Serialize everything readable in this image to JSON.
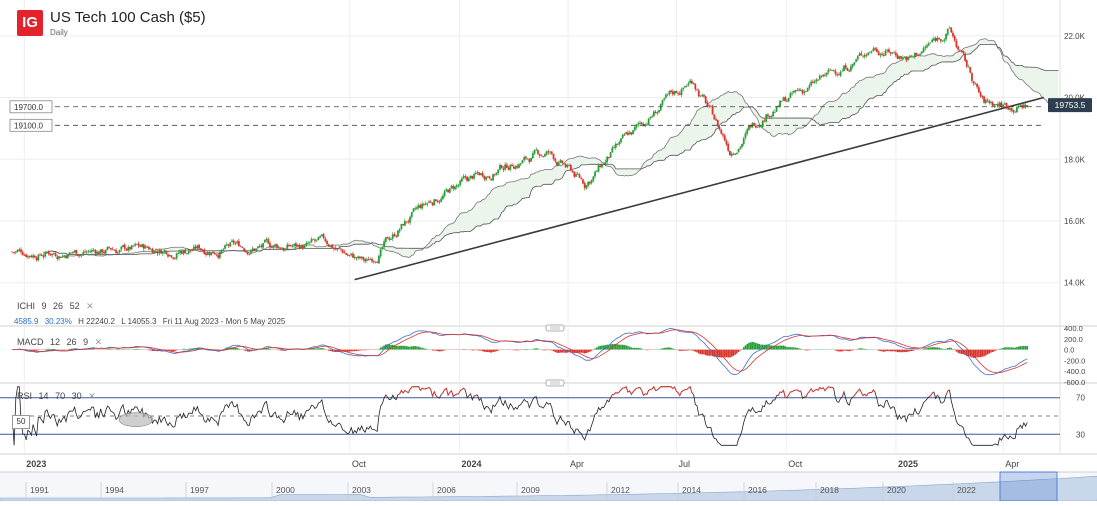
{
  "header": {
    "logo_text": "IG",
    "title": "US Tech 100 Cash ($5)",
    "subtitle": "Daily"
  },
  "colors": {
    "up": "#2a9d3a",
    "down": "#d9342b",
    "logo_bg": "#e3222b",
    "macd_line": "#3b6fd1",
    "signal_line": "#d9342b",
    "price_tag": "#2d3e50",
    "rsi_band": "#3b5a9a"
  },
  "price_levels": [
    {
      "label": "19700.0",
      "value": 19700
    },
    {
      "label": "19100.0",
      "value": 19100
    }
  ],
  "current_price": {
    "label": "19753.5",
    "value": 19753.5
  },
  "ichimoku": {
    "name": "ICHI",
    "params": [
      "9",
      "26",
      "52"
    ],
    "stats": {
      "v1": "4585.9",
      "v2": "30.23%",
      "high": "H 22240.2",
      "low": "L 14055.3",
      "range": "Fri 11 Aug 2023 - Mon 5 May 2025"
    }
  },
  "macd": {
    "name": "MACD",
    "params": [
      "12",
      "26",
      "9"
    ]
  },
  "rsi": {
    "name": "RSI",
    "params": [
      "14",
      "70",
      "30"
    ],
    "current_label": "50"
  },
  "timeline": [
    "1991",
    "1994",
    "1997",
    "2000",
    "2003",
    "2006",
    "2009",
    "2012",
    "2014",
    "2016",
    "2018",
    "2020",
    "2022"
  ],
  "chart_data": [
    {
      "type": "candlestick",
      "title": "US Tech 100 Cash ($5)",
      "x_ticks": [
        "2023",
        "Oct",
        "2024",
        "Apr",
        "Jul",
        "Oct",
        "2025",
        "Apr"
      ],
      "y_ticks": [
        "22.0K",
        "20.0K",
        "18.0K",
        "16.0K",
        "14.0K"
      ],
      "ylim": [
        13700,
        22900
      ],
      "approx_closes": [
        {
          "date": "2023-08",
          "value": 15000
        },
        {
          "date": "2023-09",
          "value": 15200
        },
        {
          "date": "2023-10",
          "value": 14600
        },
        {
          "date": "2023-11",
          "value": 15900
        },
        {
          "date": "2023-12",
          "value": 16800
        },
        {
          "date": "2024-01",
          "value": 17400
        },
        {
          "date": "2024-02",
          "value": 17900
        },
        {
          "date": "2024-03",
          "value": 18200
        },
        {
          "date": "2024-04",
          "value": 17200
        },
        {
          "date": "2024-05",
          "value": 18400
        },
        {
          "date": "2024-06",
          "value": 19600
        },
        {
          "date": "2024-07",
          "value": 20600
        },
        {
          "date": "2024-08",
          "value": 18300
        },
        {
          "date": "2024-09",
          "value": 19600
        },
        {
          "date": "2024-10",
          "value": 20200
        },
        {
          "date": "2024-11",
          "value": 20900
        },
        {
          "date": "2024-12",
          "value": 21700
        },
        {
          "date": "2025-01",
          "value": 21300
        },
        {
          "date": "2025-02",
          "value": 22200
        },
        {
          "date": "2025-03",
          "value": 19800
        },
        {
          "date": "2025-04",
          "value": 19753.5
        }
      ],
      "trendline": [
        {
          "date": "2023-10",
          "value": 14100
        },
        {
          "date": "2025-04",
          "value": 20000
        }
      ]
    },
    {
      "type": "bar",
      "title": "MACD 12 26 9",
      "y_ticks": [
        "400.0",
        "200.0",
        "0.0",
        "-200.0",
        "-400.0",
        "-600.0"
      ],
      "ylim": [
        -600,
        400
      ]
    },
    {
      "type": "line",
      "title": "RSI 14 70 30",
      "y_ticks": [
        "70",
        "30"
      ],
      "ylim": [
        15,
        85
      ]
    }
  ]
}
